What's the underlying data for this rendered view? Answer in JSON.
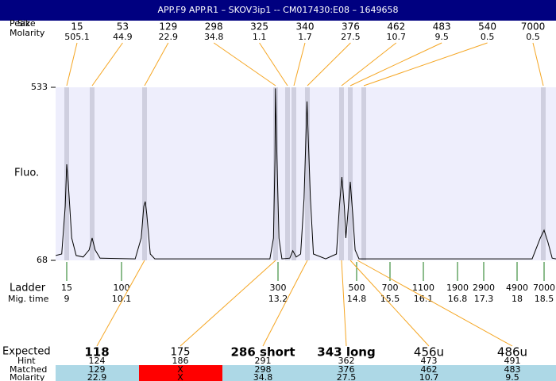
{
  "header": {
    "title": "APP.F9  APP.R1 – SKOV3ip1 -- CM017430:E08 – 1649658"
  },
  "peaks": {
    "peak_label": "Peak",
    "size_label": "Size",
    "molarity_label": "Molarity",
    "sizes": [
      15,
      53,
      129,
      298,
      325,
      340,
      376,
      462,
      483,
      540,
      7000
    ],
    "molarities": [
      505.1,
      44.9,
      22.9,
      34.8,
      1.1,
      1.7,
      27.5,
      10.7,
      9.5,
      0.5,
      0.5
    ]
  },
  "yaxis": {
    "label": "Fluo.",
    "ylim": [
      68,
      533
    ],
    "yticks": [
      68,
      533
    ]
  },
  "ladder": {
    "label": "Ladder",
    "time_label": "Mig. time",
    "sizes": [
      15,
      100,
      300,
      500,
      700,
      1100,
      1900,
      2900,
      4900,
      7000
    ],
    "times": [
      9,
      10.1,
      13.2,
      14.8,
      15.5,
      16.1,
      16.8,
      17.3,
      18,
      18.5
    ]
  },
  "trace": {
    "time": [
      8.78,
      8.9,
      8.97,
      9.0,
      9.03,
      9.1,
      9.19,
      9.33,
      9.45,
      9.51,
      9.57,
      9.67,
      10.37,
      10.49,
      10.54,
      10.57,
      10.6,
      10.67,
      10.76,
      13.04,
      13.11,
      13.14,
      13.15,
      13.18,
      13.22,
      13.28,
      13.44,
      13.5,
      13.57,
      13.66,
      13.73,
      13.79,
      13.86,
      13.92,
      14.17,
      14.39,
      14.45,
      14.5,
      14.55,
      14.58,
      14.62,
      14.67,
      14.72,
      14.77,
      14.85,
      18.28,
      18.43,
      18.5,
      18.57,
      18.65,
      18.72
    ],
    "fluo": [
      81,
      85,
      213,
      326,
      277,
      128,
      81,
      77,
      96,
      128,
      96,
      74,
      72,
      128,
      213,
      226,
      192,
      85,
      72,
      72,
      128,
      341,
      530,
      341,
      128,
      72,
      74,
      94,
      77,
      85,
      234,
      495,
      234,
      85,
      72,
      85,
      213,
      292,
      213,
      128,
      192,
      279,
      192,
      96,
      72,
      72,
      128,
      149,
      117,
      74,
      72
    ]
  },
  "table": {
    "expected": {
      "label": "Expected",
      "values": [
        "118",
        "175",
        "286 short",
        "343 long",
        "456u",
        "486u"
      ]
    },
    "hint": {
      "label": "Hint",
      "values": [
        124,
        186,
        291,
        362,
        473,
        491
      ]
    },
    "matched": {
      "label": "Matched",
      "values": [
        129,
        "X",
        298,
        376,
        462,
        483
      ]
    },
    "molarity": {
      "label": "Molarity",
      "values": [
        22.9,
        "X",
        34.8,
        27.5,
        10.7,
        9.5
      ]
    }
  }
}
